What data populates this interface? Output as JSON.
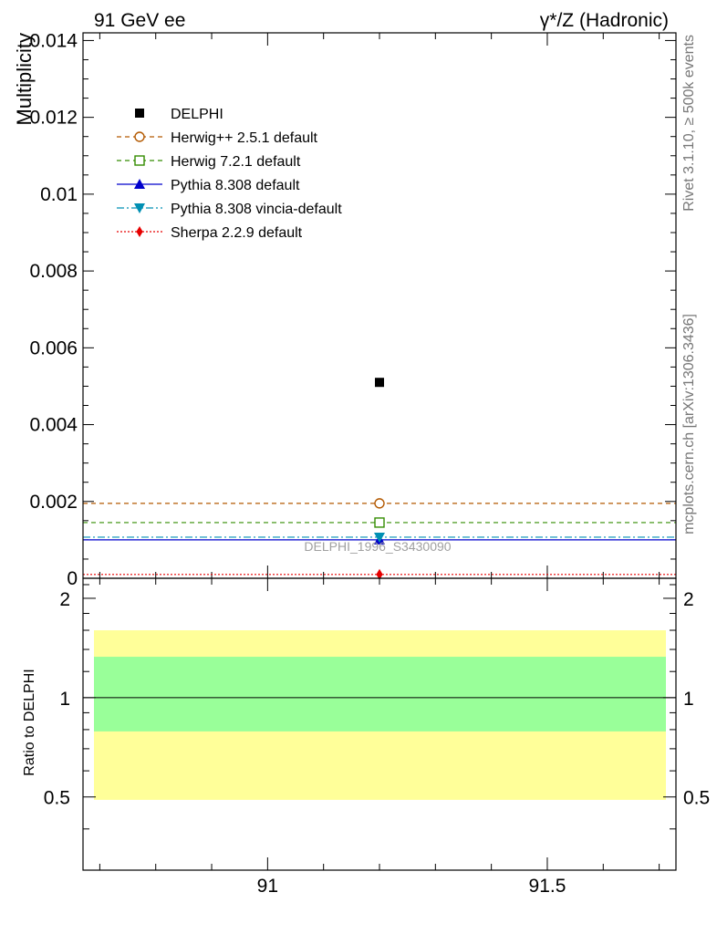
{
  "header": {
    "left": "91 GeV ee",
    "right": "γ*/Z (Hadronic)"
  },
  "side_labels": {
    "rivet": "Rivet 3.1.10, ≥ 500k events",
    "mcplots": "mcplots.cern.ch [arXiv:1306.3436]"
  },
  "chart_data": [
    {
      "type": "scatter",
      "panel": "main",
      "ylabel": "Multiplicity",
      "xlim": [
        90.67,
        91.73
      ],
      "ylim": [
        0,
        0.0142
      ],
      "yticks": [
        0,
        0.002,
        0.004,
        0.006,
        0.008,
        0.01,
        0.012,
        0.014
      ],
      "ytick_labels": [
        "0",
        "0.002",
        "0.004",
        "0.006",
        "0.008",
        "0.01",
        "0.012",
        "0.014"
      ],
      "watermark": "DELPHI_1996_S3430090",
      "legend_position": "top-left",
      "data": {
        "name": "DELPHI",
        "x": 91.2,
        "y": 0.0051,
        "color": "#000000",
        "marker": "square"
      },
      "series": [
        {
          "name": "Herwig++ 2.5.1 default",
          "x": 91.2,
          "y": 0.00195,
          "color": "#b35900",
          "marker": "circle-open",
          "dash": "5,4"
        },
        {
          "name": "Herwig 7.2.1 default",
          "x": 91.2,
          "y": 0.00145,
          "color": "#338c00",
          "marker": "square-open",
          "dash": "5,4"
        },
        {
          "name": "Pythia 8.308 default",
          "x": 91.2,
          "y": 0.001,
          "color": "#0000cc",
          "marker": "triangle-up",
          "dash": ""
        },
        {
          "name": "Pythia 8.308 vincia-default",
          "x": 91.2,
          "y": 0.00107,
          "color": "#008fb3",
          "marker": "triangle-down",
          "dash": "8,3,2,3"
        },
        {
          "name": "Sherpa 2.2.9 default",
          "x": 91.2,
          "y": 0.0001,
          "color": "#e60000",
          "marker": "diamond",
          "dash": "2,2"
        }
      ]
    },
    {
      "type": "area",
      "panel": "ratio",
      "ylabel": "Ratio to DELPHI",
      "xlim": [
        90.67,
        91.73
      ],
      "ylim": [
        0.3,
        2.3
      ],
      "yticks": [
        0.5,
        1,
        2
      ],
      "ytick_labels": [
        "0.5",
        "1",
        "2"
      ],
      "xticks": [
        91,
        91.5
      ],
      "xtick_labels": [
        "91",
        "91.5"
      ],
      "reference_line": 1,
      "bands": [
        {
          "name": "total uncertainty",
          "low": 0.49,
          "high": 1.6,
          "color": "#ffff99"
        },
        {
          "name": "stat uncertainty",
          "low": 0.79,
          "high": 1.33,
          "color": "#99ff99"
        }
      ]
    }
  ]
}
